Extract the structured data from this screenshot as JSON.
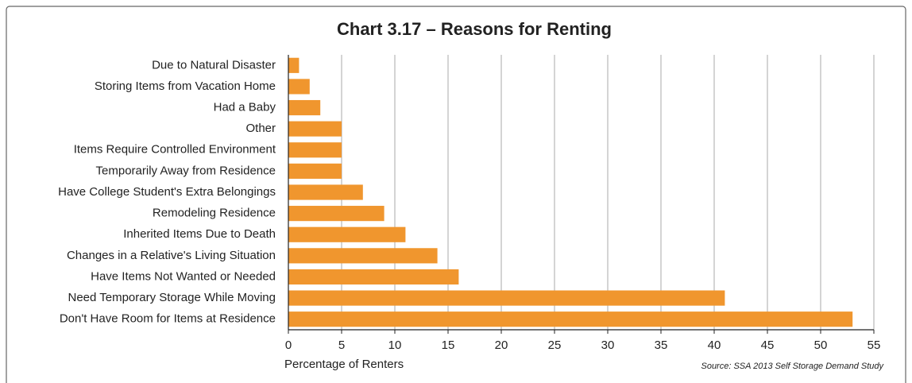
{
  "chart_data": {
    "type": "bar",
    "orientation": "horizontal",
    "title": "Chart 3.17 – Reasons for Renting",
    "x_label": "Percentage of Renters",
    "source": "Source: SSA 2013 Self Storage Demand Study",
    "categories": [
      "Due to Natural Disaster",
      "Storing Items from Vacation Home",
      "Had a Baby",
      "Other",
      "Items Require Controlled Environment",
      "Temporarily Away from Residence",
      "Have College Student's Extra Belongings",
      "Remodeling Residence",
      "Inherited Items Due to Death",
      "Changes in a Relative's Living Situation",
      "Have Items Not Wanted or Needed",
      "Need Temporary Storage While Moving",
      "Don't Have Room for Items at Residence"
    ],
    "values": [
      1,
      2,
      3,
      5,
      5,
      5,
      7,
      9,
      11,
      14,
      16,
      41,
      53
    ],
    "color": "#f0962e",
    "xlim": [
      0,
      55
    ],
    "xticks": [
      0,
      5,
      10,
      15,
      20,
      25,
      30,
      35,
      40,
      45,
      50,
      55
    ],
    "grid": true
  }
}
